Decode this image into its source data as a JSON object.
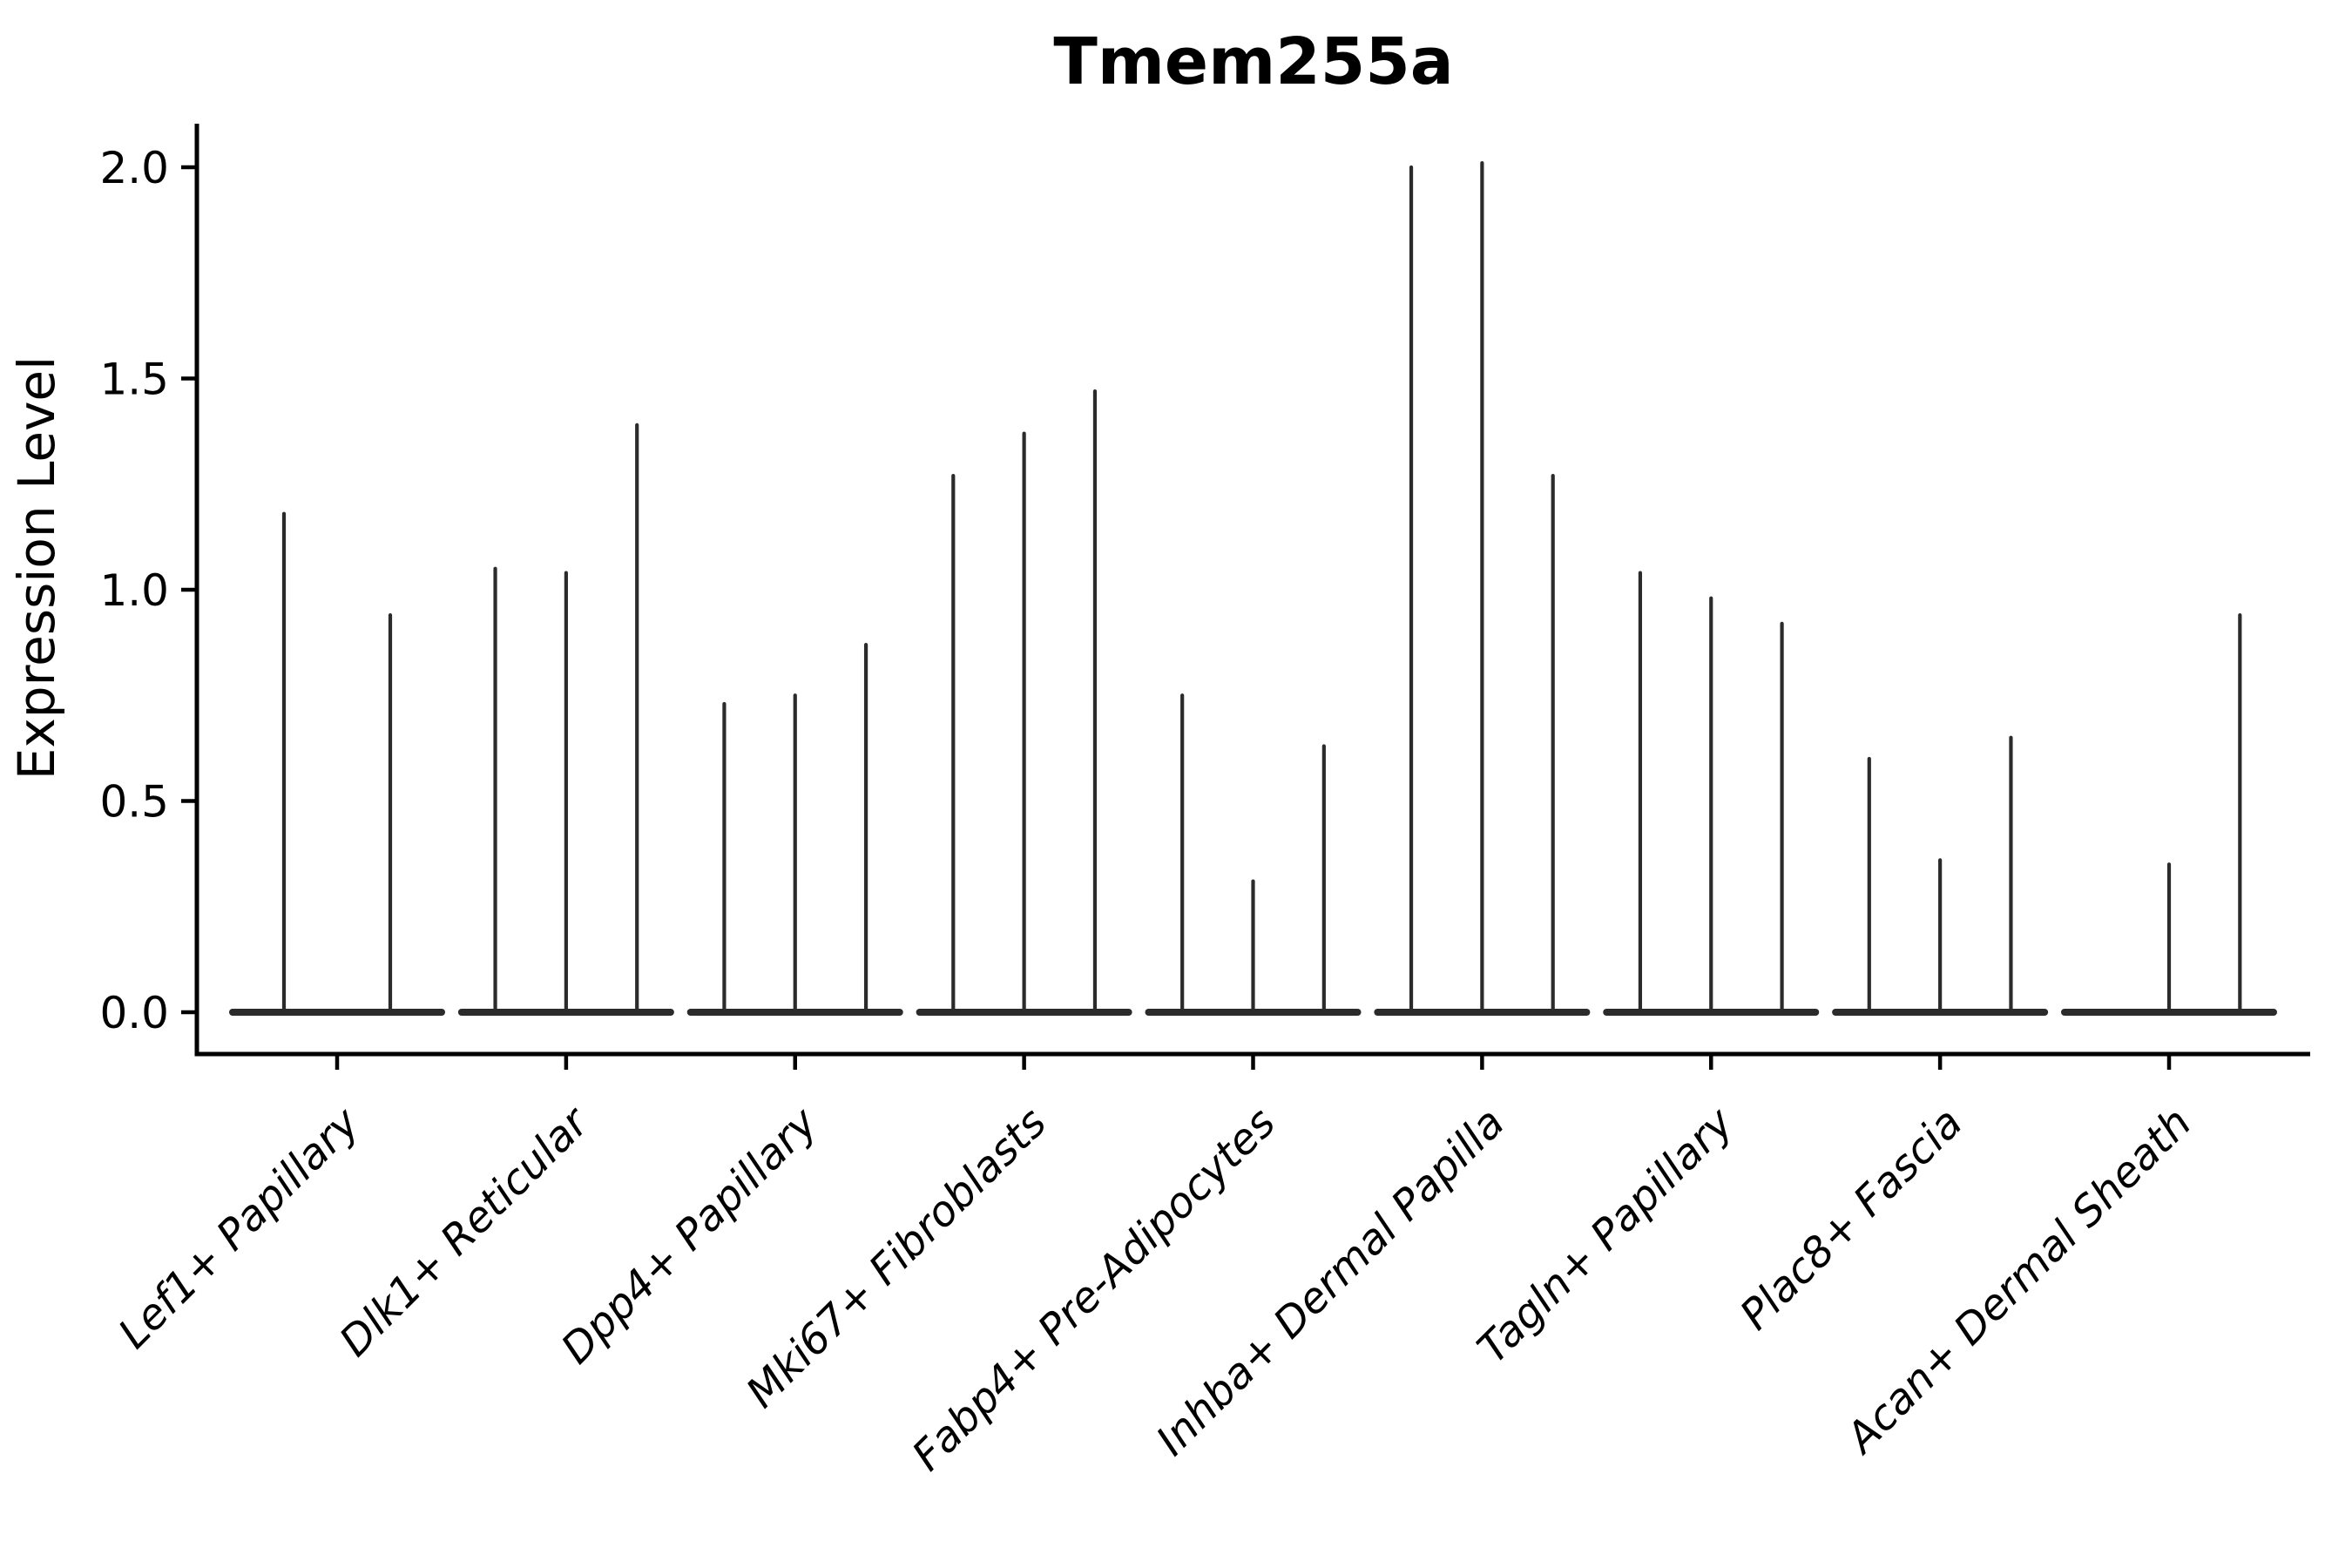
{
  "chart_data": {
    "type": "violin",
    "title": "Tmem255a",
    "ylabel": "Expression Level",
    "xlabel": "",
    "ylim": [
      -0.1,
      2.1
    ],
    "grid": false,
    "legend": null,
    "yticks": [
      {
        "value": 0.0,
        "label": "0.0"
      },
      {
        "value": 0.5,
        "label": "0.5"
      },
      {
        "value": 1.0,
        "label": "1.0"
      },
      {
        "value": 1.5,
        "label": "1.5"
      },
      {
        "value": 2.0,
        "label": "2.0"
      }
    ],
    "categories": [
      "Lef1+ Papillary",
      "Dlk1+ Reticular",
      "Dpp4+ Papillary",
      "Mki67+ Fibroblasts",
      "Fabp4+ Pre-Adipocytes",
      "Inhba+ Dermal Papilla",
      "Tagln+ Papillary",
      "Plac8+ Fascia",
      "Acan+ Dermal Sheath"
    ],
    "groups": [
      {
        "label": "Lef1+ Papillary",
        "violin_peaks": [
          1.18,
          0.94
        ]
      },
      {
        "label": "Dlk1+ Reticular",
        "violin_peaks": [
          1.05,
          1.04,
          1.39
        ]
      },
      {
        "label": "Dpp4+ Papillary",
        "violin_peaks": [
          0.73,
          0.75,
          0.87
        ]
      },
      {
        "label": "Mki67+ Fibroblasts",
        "violin_peaks": [
          1.27,
          1.37,
          1.47
        ]
      },
      {
        "label": "Fabp4+ Pre-Adipocytes",
        "violin_peaks": [
          0.75,
          0.31,
          0.63
        ]
      },
      {
        "label": "Inhba+ Dermal Papilla",
        "violin_peaks": [
          2.0,
          2.01,
          1.27
        ]
      },
      {
        "label": "Tagln+ Papillary",
        "violin_peaks": [
          1.04,
          0.98,
          0.92
        ]
      },
      {
        "label": "Plac8+ Fascia",
        "violin_peaks": [
          0.6,
          0.36,
          0.65
        ]
      },
      {
        "label": "Acan+ Dermal Sheath",
        "violin_peaks": [
          0.0,
          0.35,
          0.94
        ]
      }
    ],
    "colors": {
      "violin": "#2b2b2b",
      "axis": "#000000",
      "text": "#000000"
    }
  }
}
